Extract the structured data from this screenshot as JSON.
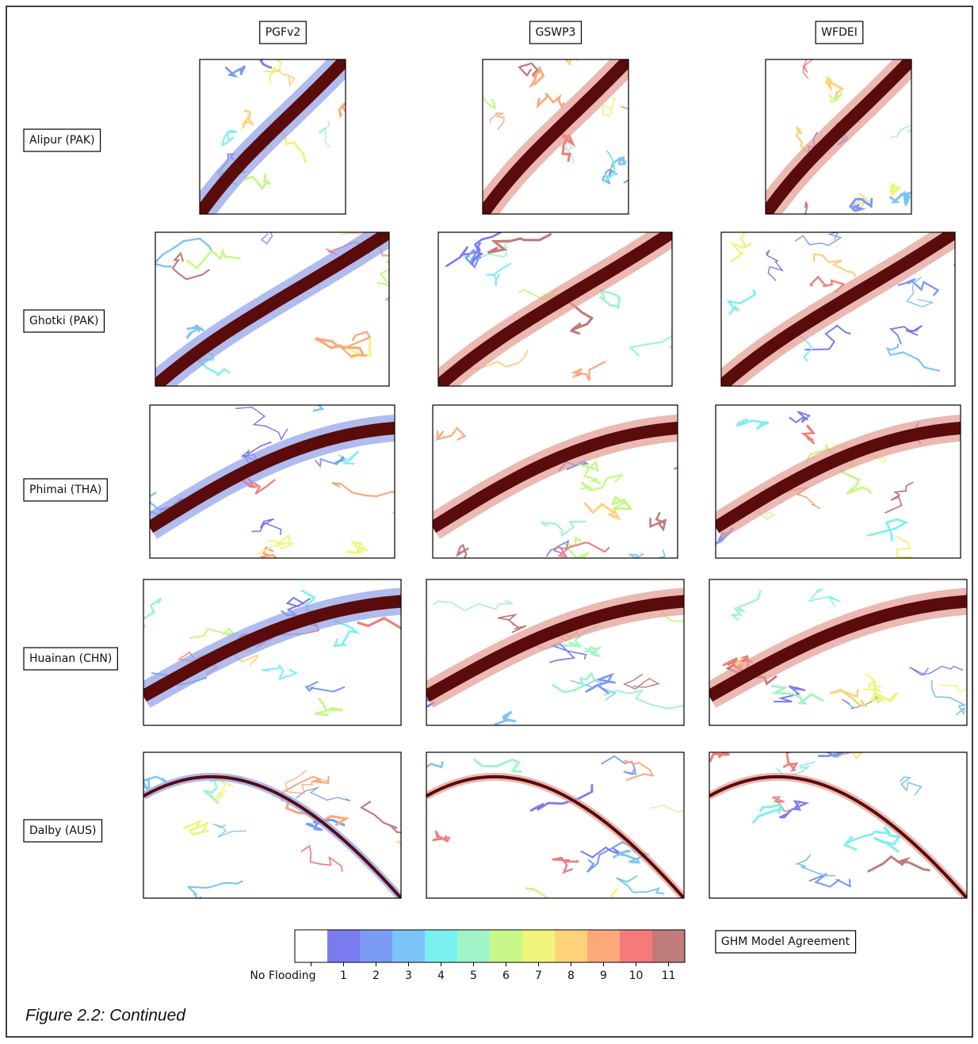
{
  "columns": [
    "PGFv2",
    "GSWP3",
    "WFDEI"
  ],
  "rows": [
    "Alipur (PAK)",
    "Ghotki (PAK)",
    "Phimai (THA)",
    "Huainan (CHN)",
    "Dalby (AUS)"
  ],
  "colorbar": {
    "labels": [
      "No Flooding",
      1,
      2,
      3,
      4,
      5,
      6,
      7,
      8,
      9,
      10,
      11
    ],
    "colors": [
      "#ffffff",
      "#7b7bf0",
      "#7b9bf5",
      "#7bc4f7",
      "#7bf0f0",
      "#a0f5c8",
      "#c8f78a",
      "#f0f57b",
      "#fcd27b",
      "#fca87b",
      "#f57b7b",
      "#c07b7b"
    ],
    "title": "GHM Model Agreement"
  },
  "caption": "Figure 2.2: Continued"
}
